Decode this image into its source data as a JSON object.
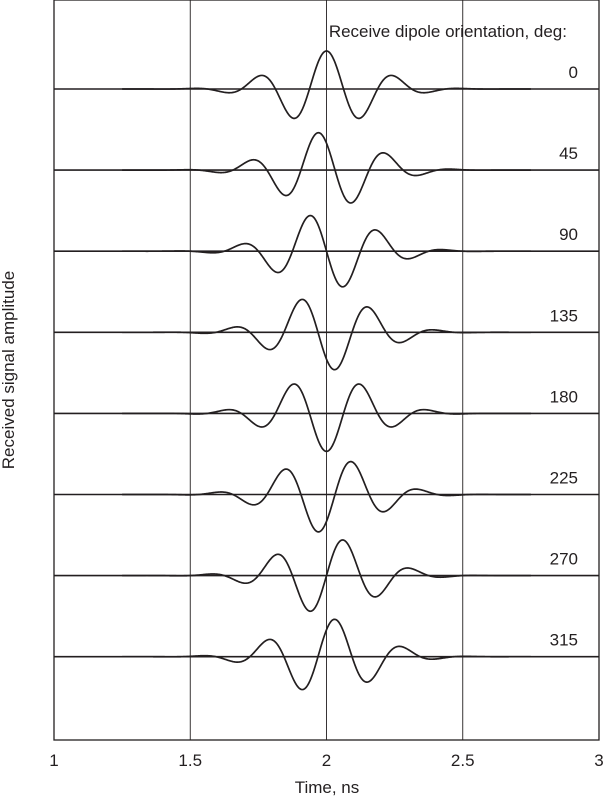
{
  "chart_data": {
    "type": "line",
    "title": "",
    "legend_title": "Receive dipole orientation, deg:",
    "xlabel": "Time, ns",
    "ylabel": "Received signal amplitude",
    "xlim": [
      1,
      3
    ],
    "x_ticks": [
      "1",
      "1.5",
      "2",
      "2.5",
      "3"
    ],
    "x_tick_values": [
      1,
      1.5,
      2,
      2.5,
      3
    ],
    "vertical_gridlines_at": [
      1.5,
      2,
      2.5
    ],
    "grid": false,
    "y_ticks": false,
    "waveform": {
      "center_frequency_GHz": 4.0,
      "gaussian_width_ns": 0.24,
      "peak_time_ns": 2.0
    },
    "series": [
      {
        "label": "0",
        "orientation_deg": 0,
        "phase_deg": 0
      },
      {
        "label": "45",
        "orientation_deg": 45,
        "phase_deg": 45
      },
      {
        "label": "90",
        "orientation_deg": 90,
        "phase_deg": 90
      },
      {
        "label": "135",
        "orientation_deg": 135,
        "phase_deg": 135
      },
      {
        "label": "180",
        "orientation_deg": 180,
        "phase_deg": 180
      },
      {
        "label": "225",
        "orientation_deg": 225,
        "phase_deg": 225
      },
      {
        "label": "270",
        "orientation_deg": 270,
        "phase_deg": 270
      },
      {
        "label": "315",
        "orientation_deg": 315,
        "phase_deg": 315
      }
    ],
    "colors": {
      "line": "#231f20",
      "grid": "#231f20",
      "background": "#ffffff"
    }
  }
}
